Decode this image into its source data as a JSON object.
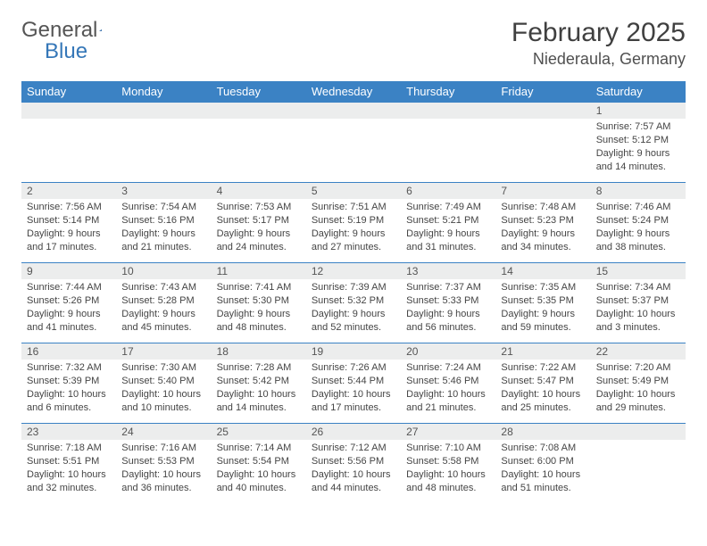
{
  "logo": {
    "text1": "General",
    "text2": "Blue",
    "color1": "#555555",
    "color2": "#3577b8",
    "triangle_color": "#2f6aa8"
  },
  "header": {
    "month_title": "February 2025",
    "location": "Niederaula, Germany"
  },
  "colors": {
    "header_bg": "#3b82c4",
    "header_fg": "#ffffff",
    "daynum_bg": "#eceded",
    "border": "#3b82c4",
    "text": "#404040"
  },
  "weekdays": [
    "Sunday",
    "Monday",
    "Tuesday",
    "Wednesday",
    "Thursday",
    "Friday",
    "Saturday"
  ],
  "weeks": [
    [
      {
        "n": "",
        "txt": ""
      },
      {
        "n": "",
        "txt": ""
      },
      {
        "n": "",
        "txt": ""
      },
      {
        "n": "",
        "txt": ""
      },
      {
        "n": "",
        "txt": ""
      },
      {
        "n": "",
        "txt": ""
      },
      {
        "n": "1",
        "txt": "Sunrise: 7:57 AM\nSunset: 5:12 PM\nDaylight: 9 hours and 14 minutes."
      }
    ],
    [
      {
        "n": "2",
        "txt": "Sunrise: 7:56 AM\nSunset: 5:14 PM\nDaylight: 9 hours and 17 minutes."
      },
      {
        "n": "3",
        "txt": "Sunrise: 7:54 AM\nSunset: 5:16 PM\nDaylight: 9 hours and 21 minutes."
      },
      {
        "n": "4",
        "txt": "Sunrise: 7:53 AM\nSunset: 5:17 PM\nDaylight: 9 hours and 24 minutes."
      },
      {
        "n": "5",
        "txt": "Sunrise: 7:51 AM\nSunset: 5:19 PM\nDaylight: 9 hours and 27 minutes."
      },
      {
        "n": "6",
        "txt": "Sunrise: 7:49 AM\nSunset: 5:21 PM\nDaylight: 9 hours and 31 minutes."
      },
      {
        "n": "7",
        "txt": "Sunrise: 7:48 AM\nSunset: 5:23 PM\nDaylight: 9 hours and 34 minutes."
      },
      {
        "n": "8",
        "txt": "Sunrise: 7:46 AM\nSunset: 5:24 PM\nDaylight: 9 hours and 38 minutes."
      }
    ],
    [
      {
        "n": "9",
        "txt": "Sunrise: 7:44 AM\nSunset: 5:26 PM\nDaylight: 9 hours and 41 minutes."
      },
      {
        "n": "10",
        "txt": "Sunrise: 7:43 AM\nSunset: 5:28 PM\nDaylight: 9 hours and 45 minutes."
      },
      {
        "n": "11",
        "txt": "Sunrise: 7:41 AM\nSunset: 5:30 PM\nDaylight: 9 hours and 48 minutes."
      },
      {
        "n": "12",
        "txt": "Sunrise: 7:39 AM\nSunset: 5:32 PM\nDaylight: 9 hours and 52 minutes."
      },
      {
        "n": "13",
        "txt": "Sunrise: 7:37 AM\nSunset: 5:33 PM\nDaylight: 9 hours and 56 minutes."
      },
      {
        "n": "14",
        "txt": "Sunrise: 7:35 AM\nSunset: 5:35 PM\nDaylight: 9 hours and 59 minutes."
      },
      {
        "n": "15",
        "txt": "Sunrise: 7:34 AM\nSunset: 5:37 PM\nDaylight: 10 hours and 3 minutes."
      }
    ],
    [
      {
        "n": "16",
        "txt": "Sunrise: 7:32 AM\nSunset: 5:39 PM\nDaylight: 10 hours and 6 minutes."
      },
      {
        "n": "17",
        "txt": "Sunrise: 7:30 AM\nSunset: 5:40 PM\nDaylight: 10 hours and 10 minutes."
      },
      {
        "n": "18",
        "txt": "Sunrise: 7:28 AM\nSunset: 5:42 PM\nDaylight: 10 hours and 14 minutes."
      },
      {
        "n": "19",
        "txt": "Sunrise: 7:26 AM\nSunset: 5:44 PM\nDaylight: 10 hours and 17 minutes."
      },
      {
        "n": "20",
        "txt": "Sunrise: 7:24 AM\nSunset: 5:46 PM\nDaylight: 10 hours and 21 minutes."
      },
      {
        "n": "21",
        "txt": "Sunrise: 7:22 AM\nSunset: 5:47 PM\nDaylight: 10 hours and 25 minutes."
      },
      {
        "n": "22",
        "txt": "Sunrise: 7:20 AM\nSunset: 5:49 PM\nDaylight: 10 hours and 29 minutes."
      }
    ],
    [
      {
        "n": "23",
        "txt": "Sunrise: 7:18 AM\nSunset: 5:51 PM\nDaylight: 10 hours and 32 minutes."
      },
      {
        "n": "24",
        "txt": "Sunrise: 7:16 AM\nSunset: 5:53 PM\nDaylight: 10 hours and 36 minutes."
      },
      {
        "n": "25",
        "txt": "Sunrise: 7:14 AM\nSunset: 5:54 PM\nDaylight: 10 hours and 40 minutes."
      },
      {
        "n": "26",
        "txt": "Sunrise: 7:12 AM\nSunset: 5:56 PM\nDaylight: 10 hours and 44 minutes."
      },
      {
        "n": "27",
        "txt": "Sunrise: 7:10 AM\nSunset: 5:58 PM\nDaylight: 10 hours and 48 minutes."
      },
      {
        "n": "28",
        "txt": "Sunrise: 7:08 AM\nSunset: 6:00 PM\nDaylight: 10 hours and 51 minutes."
      },
      {
        "n": "",
        "txt": ""
      }
    ]
  ]
}
